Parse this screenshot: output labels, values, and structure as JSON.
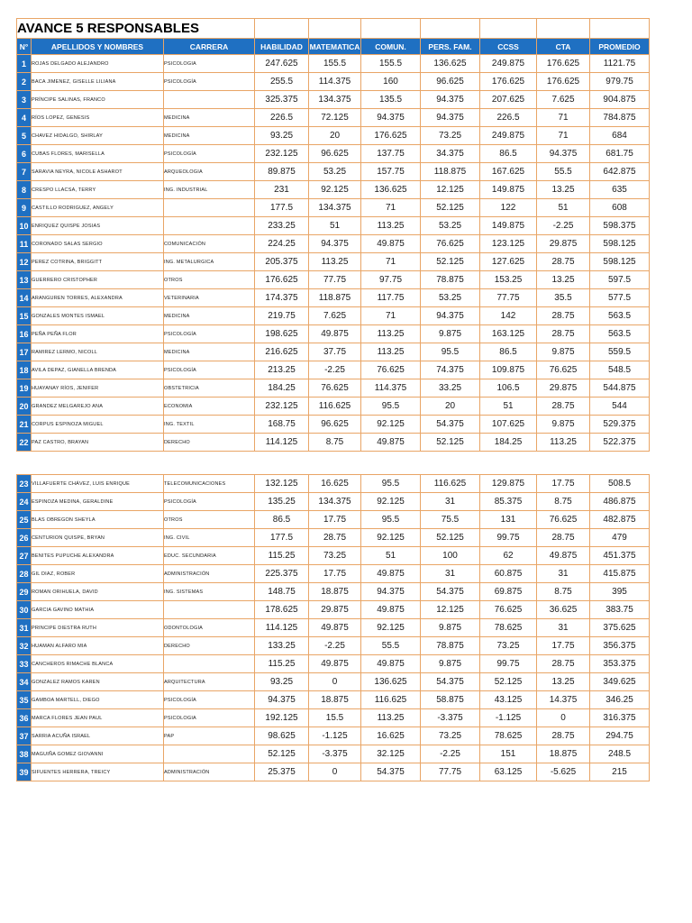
{
  "title": "AVANCE 5 RESPONSABLES",
  "colors": {
    "header_bg": "#1F70C2",
    "border_orange": "#E9A566",
    "title_border": "#3a3a3a"
  },
  "columns": [
    "N°",
    "APELLIDOS Y NOMBRES",
    "CARRERA",
    "HABILIDAD",
    "MATEMATICA",
    "COMUN.",
    "PERS. FAM.",
    "CCSS",
    "CTA",
    "PROMEDIO"
  ],
  "rows_block1": [
    {
      "n": "1",
      "name": "ROJAS DELGADO ALEJANDRO",
      "carrera": "PSICOLOGIA",
      "values": [
        "247.625",
        "155.5",
        "155.5",
        "136.625",
        "249.875",
        "176.625",
        "1121.75"
      ]
    },
    {
      "n": "2",
      "name": "BACA JIMENEZ, GISELLE LILIANA",
      "carrera": "PSICOLOGÍA",
      "values": [
        "255.5",
        "114.375",
        "160",
        "96.625",
        "176.625",
        "176.625",
        "979.75"
      ]
    },
    {
      "n": "3",
      "name": "PRÍNCIPE SALINAS, FRANCO",
      "carrera": "",
      "values": [
        "325.375",
        "134.375",
        "135.5",
        "94.375",
        "207.625",
        "7.625",
        "904.875"
      ]
    },
    {
      "n": "4",
      "name": "RÍOS LOPEZ, GENESIS",
      "carrera": "MEDICINA",
      "values": [
        "226.5",
        "72.125",
        "94.375",
        "94.375",
        "226.5",
        "71",
        "784.875"
      ]
    },
    {
      "n": "5",
      "name": "CHAVEZ HIDALGO, SHIRLAY",
      "carrera": "MEDICINA",
      "values": [
        "93.25",
        "20",
        "176.625",
        "73.25",
        "249.875",
        "71",
        "684"
      ]
    },
    {
      "n": "6",
      "name": "CUBAS FLORES, MARISELLA",
      "carrera": "PSICOLOGÍA",
      "values": [
        "232.125",
        "96.625",
        "137.75",
        "34.375",
        "86.5",
        "94.375",
        "681.75"
      ]
    },
    {
      "n": "7",
      "name": "SARAVIA NEYRA, NICOLE ASHAROT",
      "carrera": "ARQUEOLOGIA",
      "values": [
        "89.875",
        "53.25",
        "157.75",
        "118.875",
        "167.625",
        "55.5",
        "642.875"
      ]
    },
    {
      "n": "8",
      "name": "CRESPO LLACSA, TERRY",
      "carrera": "ING. INDUSTRIAL",
      "values": [
        "231",
        "92.125",
        "136.625",
        "12.125",
        "149.875",
        "13.25",
        "635"
      ]
    },
    {
      "n": "9",
      "name": "CASTILLO RODRIGUEZ, ANGELY",
      "carrera": "",
      "values": [
        "177.5",
        "134.375",
        "71",
        "52.125",
        "122",
        "51",
        "608"
      ]
    },
    {
      "n": "10",
      "name": "ENRIQUEZ QUISPE JOSIAS",
      "carrera": "",
      "values": [
        "233.25",
        "51",
        "113.25",
        "53.25",
        "149.875",
        "-2.25",
        "598.375"
      ]
    },
    {
      "n": "11",
      "name": "CORONADO SALAS SERGIO",
      "carrera": "COMUNICACIÓN",
      "values": [
        "224.25",
        "94.375",
        "49.875",
        "76.625",
        "123.125",
        "29.875",
        "598.125"
      ]
    },
    {
      "n": "12",
      "name": "PEREZ COTRINA, BRIGGITT",
      "carrera": "ING. METALURGICA",
      "values": [
        "205.375",
        "113.25",
        "71",
        "52.125",
        "127.625",
        "28.75",
        "598.125"
      ]
    },
    {
      "n": "13",
      "name": "GUERRERO CRISTOPHER",
      "carrera": "OTROS",
      "values": [
        "176.625",
        "77.75",
        "97.75",
        "78.875",
        "153.25",
        "13.25",
        "597.5"
      ]
    },
    {
      "n": "14",
      "name": "ARANGUREN TORRES, ALEXANDRA",
      "carrera": "VETERINARIA",
      "values": [
        "174.375",
        "118.875",
        "117.75",
        "53.25",
        "77.75",
        "35.5",
        "577.5"
      ]
    },
    {
      "n": "15",
      "name": "GONZALES MONTES ISMAEL",
      "carrera": "MEDICINA",
      "values": [
        "219.75",
        "7.625",
        "71",
        "94.375",
        "142",
        "28.75",
        "563.5"
      ]
    },
    {
      "n": "16",
      "name": "PEÑA PEÑA FLOR",
      "carrera": "PSICOLOGÍA",
      "values": [
        "198.625",
        "49.875",
        "113.25",
        "9.875",
        "163.125",
        "28.75",
        "563.5"
      ]
    },
    {
      "n": "17",
      "name": "RAMIREZ LERMO, NICOLL",
      "carrera": "MEDICINA",
      "values": [
        "216.625",
        "37.75",
        "113.25",
        "95.5",
        "86.5",
        "9.875",
        "559.5"
      ]
    },
    {
      "n": "18",
      "name": "AVILA DEPAZ, GIANELLA BRENDA",
      "carrera": "PSICOLOGÍA",
      "values": [
        "213.25",
        "-2.25",
        "76.625",
        "74.375",
        "109.875",
        "76.625",
        "548.5"
      ]
    },
    {
      "n": "19",
      "name": "HUAYANAY RÍOS, JENIFER",
      "carrera": "OBSTETRICIA",
      "values": [
        "184.25",
        "76.625",
        "114.375",
        "33.25",
        "106.5",
        "29.875",
        "544.875"
      ]
    },
    {
      "n": "20",
      "name": "GRANDEZ MELGAREJO ANA",
      "carrera": "ECONOMIA",
      "values": [
        "232.125",
        "116.625",
        "95.5",
        "20",
        "51",
        "28.75",
        "544"
      ]
    },
    {
      "n": "21",
      "name": "CORPUS ESPINOZA MIGUEL",
      "carrera": "ING. TEXTIL",
      "values": [
        "168.75",
        "96.625",
        "92.125",
        "54.375",
        "107.625",
        "9.875",
        "529.375"
      ]
    },
    {
      "n": "22",
      "name": "PAZ CASTRO, BRAYAN",
      "carrera": "DERECHO",
      "values": [
        "114.125",
        "8.75",
        "49.875",
        "52.125",
        "184.25",
        "113.25",
        "522.375"
      ]
    }
  ],
  "rows_block2": [
    {
      "n": "23",
      "name": "VILLAFUERTE CHÁVEZ, LUIS ENRIQUE",
      "carrera": "TELECOMUNICACIONES",
      "values": [
        "132.125",
        "16.625",
        "95.5",
        "116.625",
        "129.875",
        "17.75",
        "508.5"
      ]
    },
    {
      "n": "24",
      "name": "ESPINOZA MEDINA, GERALDINE",
      "carrera": "PSICOLOGÍA",
      "values": [
        "135.25",
        "134.375",
        "92.125",
        "31",
        "85.375",
        "8.75",
        "486.875"
      ]
    },
    {
      "n": "25",
      "name": "BLAS OBREGON SHEYLA",
      "carrera": "OTROS",
      "values": [
        "86.5",
        "17.75",
        "95.5",
        "75.5",
        "131",
        "76.625",
        "482.875"
      ]
    },
    {
      "n": "26",
      "name": "CENTURION QUISPE, BRYAN",
      "carrera": "ING. CIVIL",
      "values": [
        "177.5",
        "28.75",
        "92.125",
        "52.125",
        "99.75",
        "28.75",
        "479"
      ]
    },
    {
      "n": "27",
      "name": "BENITES PUPUCHE ALEXANDRA",
      "carrera": "EDUC. SECUNDARIA",
      "values": [
        "115.25",
        "73.25",
        "51",
        "100",
        "62",
        "49.875",
        "451.375"
      ]
    },
    {
      "n": "28",
      "name": "GIL DIAZ, ROBER",
      "carrera": "ADMINISTRACIÓN",
      "values": [
        "225.375",
        "17.75",
        "49.875",
        "31",
        "60.875",
        "31",
        "415.875"
      ]
    },
    {
      "n": "29",
      "name": "ROMAN ORIHUELA, DAVID",
      "carrera": "ING. SISTEMAS",
      "values": [
        "148.75",
        "18.875",
        "94.375",
        "54.375",
        "69.875",
        "8.75",
        "395"
      ]
    },
    {
      "n": "30",
      "name": "GARCIA GAVINO MATHIA",
      "carrera": "",
      "values": [
        "178.625",
        "29.875",
        "49.875",
        "12.125",
        "76.625",
        "36.625",
        "383.75"
      ]
    },
    {
      "n": "31",
      "name": "PRINCIPE DIESTRA RUTH",
      "carrera": "ODONTOLOGIA",
      "values": [
        "114.125",
        "49.875",
        "92.125",
        "9.875",
        "78.625",
        "31",
        "375.625"
      ]
    },
    {
      "n": "32",
      "name": "HUAMAN ALFARO MIA",
      "carrera": "DERECHO",
      "values": [
        "133.25",
        "-2.25",
        "55.5",
        "78.875",
        "73.25",
        "17.75",
        "356.375"
      ]
    },
    {
      "n": "33",
      "name": "CANCHEROS RIMACHE BLANCA",
      "carrera": "",
      "values": [
        "115.25",
        "49.875",
        "49.875",
        "9.875",
        "99.75",
        "28.75",
        "353.375"
      ]
    },
    {
      "n": "34",
      "name": "GONZALEZ RAMOS KAREN",
      "carrera": "ARQUITECTURA",
      "values": [
        "93.25",
        "0",
        "136.625",
        "54.375",
        "52.125",
        "13.25",
        "349.625"
      ]
    },
    {
      "n": "35",
      "name": "GAMBOA MARTELL, DIEGO",
      "carrera": "PSICOLOGÍA",
      "values": [
        "94.375",
        "18.875",
        "116.625",
        "58.875",
        "43.125",
        "14.375",
        "346.25"
      ]
    },
    {
      "n": "36",
      "name": "MARCA FLORES JEAN PAUL",
      "carrera": "PSICOLOGIA",
      "values": [
        "192.125",
        "15.5",
        "113.25",
        "-3.375",
        "-1.125",
        "0",
        "316.375"
      ]
    },
    {
      "n": "37",
      "name": "SARRIA ACUÑA ISRAEL",
      "carrera": "PAP",
      "values": [
        "98.625",
        "-1.125",
        "16.625",
        "73.25",
        "78.625",
        "28.75",
        "294.75"
      ]
    },
    {
      "n": "38",
      "name": "MAGUIÑA GOMEZ GIOVANNI",
      "carrera": "",
      "values": [
        "52.125",
        "-3.375",
        "32.125",
        "-2.25",
        "151",
        "18.875",
        "248.5"
      ]
    },
    {
      "n": "39",
      "name": "SIFUENTES HERRERA, TREICY",
      "carrera": "ADMINISTRACIÓN",
      "values": [
        "25.375",
        "0",
        "54.375",
        "77.75",
        "63.125",
        "-5.625",
        "215"
      ]
    }
  ]
}
